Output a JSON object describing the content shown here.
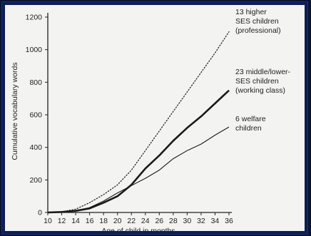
{
  "chart_data": {
    "type": "line",
    "title": "",
    "xlabel": "Age of child in months",
    "ylabel": "Cumulative vocabulary words",
    "xlim": [
      10,
      36
    ],
    "ylim": [
      0,
      1200
    ],
    "x_ticks": [
      10,
      12,
      14,
      16,
      18,
      20,
      22,
      24,
      26,
      28,
      30,
      32,
      34,
      36
    ],
    "y_ticks": [
      0,
      200,
      400,
      600,
      800,
      1000,
      1200
    ],
    "grid": false,
    "legend": "direct labels at right",
    "series": [
      {
        "label_lines": [
          "13 higher",
          "SES children",
          "(professional)"
        ],
        "style": "dotted",
        "x": [
          10,
          12,
          14,
          16,
          18,
          20,
          22,
          24,
          26,
          28,
          30,
          32,
          34,
          36
        ],
        "y": [
          0,
          5,
          20,
          60,
          110,
          170,
          260,
          380,
          500,
          620,
          740,
          860,
          980,
          1110
        ]
      },
      {
        "label_lines": [
          "23 middle/lower-",
          "SES children",
          "(working class)"
        ],
        "style": "bold",
        "x": [
          10,
          12,
          14,
          16,
          18,
          20,
          22,
          24,
          26,
          28,
          30,
          32,
          34,
          36
        ],
        "y": [
          0,
          3,
          10,
          25,
          60,
          100,
          170,
          270,
          350,
          440,
          520,
          590,
          670,
          750
        ]
      },
      {
        "label_lines": [
          "6 welfare",
          "children"
        ],
        "style": "thin",
        "x": [
          10,
          12,
          14,
          16,
          18,
          20,
          22,
          24,
          26,
          28,
          30,
          32,
          34,
          36
        ],
        "y": [
          0,
          3,
          10,
          30,
          70,
          120,
          165,
          210,
          260,
          330,
          380,
          420,
          475,
          525
        ]
      }
    ]
  }
}
